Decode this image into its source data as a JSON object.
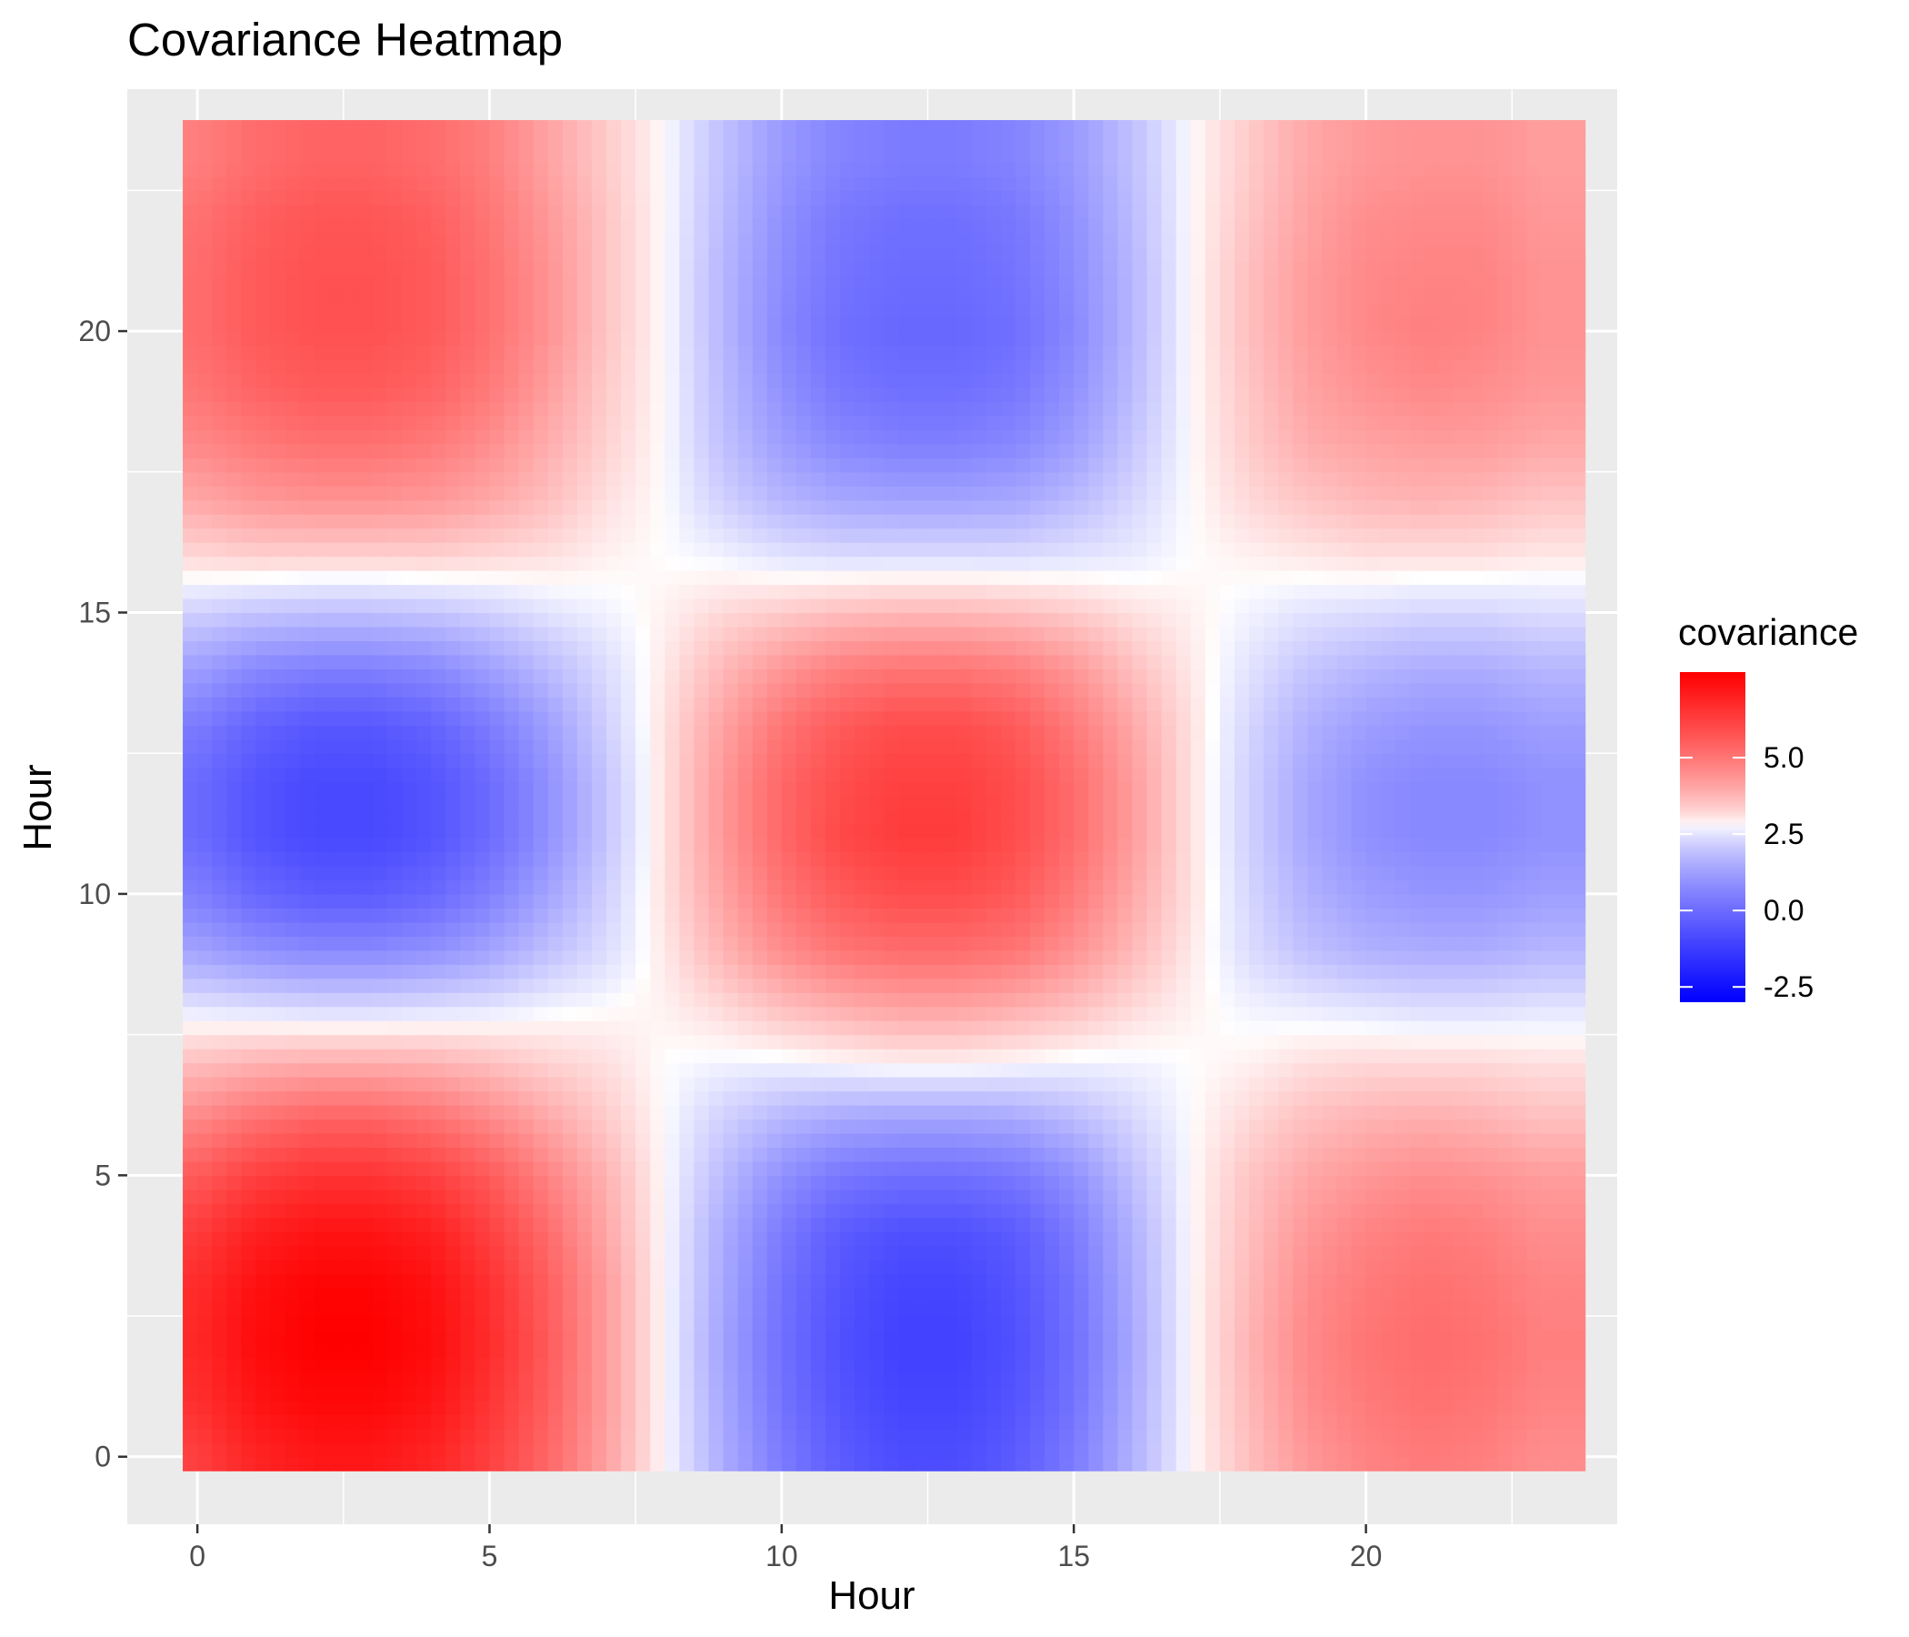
{
  "chart_data": {
    "type": "heatmap",
    "title": "Covariance Heatmap",
    "xlabel": "Hour",
    "ylabel": "Hour",
    "x": [
      0,
      1,
      2,
      3,
      4,
      5,
      6,
      7,
      8,
      9,
      10,
      11,
      12,
      13,
      14,
      15,
      16,
      17,
      18,
      19,
      20,
      21,
      22,
      23
    ],
    "y": [
      0,
      1,
      2,
      3,
      4,
      5,
      6,
      7,
      8,
      9,
      10,
      11,
      12,
      13,
      14,
      15,
      16,
      17,
      18,
      19,
      20,
      21,
      22,
      23
    ],
    "xlim": [
      -1.2,
      24.3
    ],
    "ylim": [
      -1.2,
      24.3
    ],
    "x_ticks": [
      0,
      5,
      10,
      15,
      20
    ],
    "y_ticks": [
      0,
      5,
      10,
      15,
      20
    ],
    "x_tick_labels": [
      "0",
      "5",
      "10",
      "15",
      "20"
    ],
    "y_tick_labels": [
      "0",
      "5",
      "10",
      "15",
      "20"
    ],
    "values": [
      [
        6.2,
        6.9,
        7.2,
        7.2,
        6.9,
        6.2,
        5.3,
        4.1,
        2.8,
        1.5,
        0.4,
        -0.4,
        -0.8,
        -0.8,
        -0.4,
        0.4,
        1.6,
        2.8,
        3.6,
        4.3,
        4.7,
        4.9,
        4.8,
        4.5
      ],
      [
        6.6,
        7.3,
        7.6,
        7.6,
        7.3,
        6.5,
        5.5,
        4.2,
        2.8,
        1.4,
        0.2,
        -0.6,
        -1.0,
        -1.0,
        -0.6,
        0.2,
        1.5,
        2.8,
        3.7,
        4.5,
        4.9,
        5.1,
        5.0,
        4.7
      ],
      [
        6.8,
        7.5,
        7.8,
        7.8,
        7.5,
        6.7,
        5.6,
        4.2,
        2.8,
        1.3,
        0.1,
        -0.7,
        -1.1,
        -1.1,
        -0.7,
        0.1,
        1.4,
        2.8,
        3.8,
        4.6,
        5.0,
        5.2,
        5.1,
        4.8
      ],
      [
        6.7,
        7.4,
        7.7,
        7.7,
        7.4,
        6.6,
        5.5,
        4.2,
        2.8,
        1.4,
        0.2,
        -0.6,
        -1.0,
        -1.0,
        -0.6,
        0.2,
        1.5,
        2.8,
        3.7,
        4.5,
        4.9,
        5.1,
        5.0,
        4.7
      ],
      [
        6.3,
        7.0,
        7.3,
        7.3,
        7.0,
        6.2,
        5.2,
        4.0,
        2.8,
        1.5,
        0.4,
        -0.4,
        -0.7,
        -0.7,
        -0.4,
        0.4,
        1.6,
        2.8,
        3.6,
        4.3,
        4.7,
        4.9,
        4.8,
        4.5
      ],
      [
        5.6,
        6.2,
        6.5,
        6.5,
        6.2,
        5.6,
        4.7,
        3.8,
        2.8,
        1.8,
        0.9,
        0.3,
        0.1,
        0.1,
        0.3,
        0.9,
        1.9,
        2.8,
        3.5,
        4.0,
        4.3,
        4.5,
        4.4,
        4.2
      ],
      [
        4.6,
        5.1,
        5.4,
        5.4,
        5.1,
        4.6,
        4.0,
        3.4,
        2.8,
        2.2,
        1.7,
        1.4,
        1.3,
        1.3,
        1.4,
        1.8,
        2.3,
        2.8,
        3.2,
        3.6,
        3.8,
        3.9,
        3.8,
        3.6
      ],
      [
        3.6,
        3.8,
        3.9,
        3.9,
        3.8,
        3.6,
        3.3,
        3.1,
        2.8,
        2.7,
        2.7,
        2.8,
        2.9,
        2.9,
        2.8,
        2.7,
        2.7,
        2.8,
        2.9,
        3.1,
        3.2,
        3.2,
        3.2,
        3.1
      ],
      [
        2.5,
        2.4,
        2.3,
        2.3,
        2.4,
        2.5,
        2.7,
        2.8,
        2.9,
        3.2,
        3.6,
        3.9,
        4.1,
        4.1,
        3.9,
        3.6,
        3.2,
        2.9,
        2.7,
        2.6,
        2.5,
        2.4,
        2.4,
        2.5
      ],
      [
        1.3,
        0.9,
        0.7,
        0.7,
        0.9,
        1.3,
        1.9,
        2.4,
        3.0,
        3.8,
        4.5,
        5.0,
        5.2,
        5.2,
        5.0,
        4.4,
        3.7,
        3.0,
        2.4,
        1.9,
        1.6,
        1.5,
        1.5,
        1.7
      ],
      [
        0.5,
        -0.1,
        -0.4,
        -0.4,
        -0.1,
        0.5,
        1.3,
        2.2,
        3.1,
        4.1,
        5.0,
        5.6,
        5.9,
        5.9,
        5.6,
        4.9,
        4.0,
        3.1,
        2.3,
        1.6,
        1.2,
        1.0,
        1.0,
        1.2
      ],
      [
        0.0,
        -0.6,
        -0.9,
        -0.9,
        -0.6,
        0.0,
        0.9,
        2.0,
        3.1,
        4.3,
        5.3,
        6.0,
        6.3,
        6.3,
        5.9,
        5.2,
        4.2,
        3.1,
        2.2,
        1.4,
        0.9,
        0.7,
        0.7,
        0.9
      ],
      [
        0.0,
        -0.6,
        -0.9,
        -0.9,
        -0.6,
        0.0,
        0.9,
        2.0,
        3.1,
        4.3,
        5.3,
        5.9,
        6.2,
        6.2,
        5.9,
        5.2,
        4.2,
        3.1,
        2.2,
        1.4,
        0.9,
        0.7,
        0.7,
        0.9
      ],
      [
        0.4,
        -0.2,
        -0.5,
        -0.5,
        -0.2,
        0.4,
        1.2,
        2.2,
        3.1,
        4.1,
        5.0,
        5.6,
        5.9,
        5.9,
        5.6,
        4.9,
        4.0,
        3.1,
        2.3,
        1.6,
        1.2,
        1.0,
        1.0,
        1.2
      ],
      [
        1.2,
        0.7,
        0.5,
        0.5,
        0.7,
        1.2,
        1.8,
        2.4,
        3.0,
        3.7,
        4.3,
        4.8,
        5.0,
        5.0,
        4.8,
        4.3,
        3.6,
        3.0,
        2.5,
        2.0,
        1.7,
        1.5,
        1.5,
        1.7
      ],
      [
        2.2,
        2.0,
        1.9,
        1.9,
        2.0,
        2.2,
        2.5,
        2.7,
        2.9,
        3.2,
        3.4,
        3.6,
        3.7,
        3.7,
        3.6,
        3.4,
        3.1,
        2.9,
        2.7,
        2.5,
        2.4,
        2.3,
        2.3,
        2.4
      ],
      [
        3.2,
        3.3,
        3.3,
        3.3,
        3.3,
        3.2,
        3.1,
        2.9,
        2.8,
        2.7,
        2.5,
        2.4,
        2.4,
        2.4,
        2.4,
        2.5,
        2.6,
        2.8,
        2.9,
        3.0,
        3.1,
        3.1,
        3.1,
        3.0
      ],
      [
        4.0,
        4.3,
        4.4,
        4.4,
        4.3,
        4.0,
        3.6,
        3.1,
        2.8,
        2.2,
        1.7,
        1.4,
        1.3,
        1.3,
        1.4,
        1.8,
        2.3,
        2.8,
        3.2,
        3.5,
        3.7,
        3.8,
        3.7,
        3.5
      ],
      [
        4.6,
        4.9,
        5.1,
        5.1,
        4.9,
        4.5,
        3.9,
        3.3,
        2.8,
        1.9,
        1.2,
        0.7,
        0.5,
        0.5,
        0.7,
        1.2,
        2.0,
        2.8,
        3.4,
        3.9,
        4.1,
        4.2,
        4.2,
        4.0
      ],
      [
        5.0,
        5.4,
        5.6,
        5.6,
        5.4,
        4.9,
        4.2,
        3.4,
        2.8,
        1.8,
        0.9,
        0.3,
        0.1,
        0.1,
        0.3,
        0.9,
        1.8,
        2.8,
        3.5,
        4.1,
        4.4,
        4.6,
        4.5,
        4.3
      ],
      [
        5.2,
        5.6,
        5.8,
        5.8,
        5.6,
        5.1,
        4.4,
        3.5,
        2.8,
        1.7,
        0.7,
        0.1,
        -0.1,
        -0.1,
        0.1,
        0.7,
        1.7,
        2.8,
        3.6,
        4.2,
        4.6,
        4.8,
        4.7,
        4.4
      ],
      [
        5.2,
        5.6,
        5.8,
        5.8,
        5.6,
        5.1,
        4.4,
        3.5,
        2.8,
        1.7,
        0.8,
        0.2,
        0.0,
        0.0,
        0.2,
        0.8,
        1.7,
        2.8,
        3.6,
        4.2,
        4.6,
        4.7,
        4.7,
        4.4
      ],
      [
        5.1,
        5.5,
        5.7,
        5.7,
        5.5,
        5.0,
        4.3,
        3.5,
        2.8,
        1.8,
        0.9,
        0.3,
        0.1,
        0.1,
        0.3,
        0.9,
        1.8,
        2.8,
        3.5,
        4.1,
        4.5,
        4.6,
        4.6,
        4.3
      ],
      [
        4.8,
        5.2,
        5.4,
        5.4,
        5.2,
        4.8,
        4.1,
        3.4,
        2.8,
        1.9,
        1.1,
        0.6,
        0.4,
        0.4,
        0.6,
        1.1,
        1.9,
        2.8,
        3.4,
        4.0,
        4.3,
        4.4,
        4.4,
        4.2
      ]
    ],
    "legend": {
      "title": "covariance",
      "position": "right",
      "breaks": [
        5.0,
        2.5,
        0.0,
        -2.5
      ],
      "labels": [
        "5.0",
        "2.5",
        "0.0",
        "-2.5"
      ],
      "range": [
        -3.0,
        7.8
      ],
      "color_low": "#0000FF",
      "color_mid": "#FFFFFF",
      "color_high": "#FF0000",
      "midpoint": 2.8
    },
    "panel_background": "#EBEBEB",
    "grid": true,
    "grid_color": "#FFFFFF"
  }
}
